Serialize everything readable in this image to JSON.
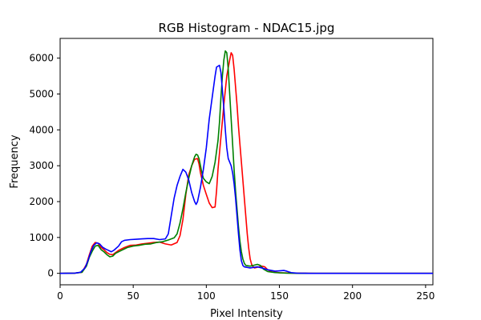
{
  "chart_data": {
    "type": "line",
    "title": "RGB Histogram - NDAC15.jpg",
    "xlabel": "Pixel Intensity",
    "ylabel": "Frequency",
    "xlim": [
      0,
      255
    ],
    "ylim": [
      -320,
      6550
    ],
    "xticks": [
      0,
      50,
      100,
      150,
      200,
      250
    ],
    "yticks": [
      0,
      1000,
      2000,
      3000,
      4000,
      5000,
      6000
    ],
    "grid": false,
    "legend": "none",
    "series": [
      {
        "color": "#ff0000",
        "points": [
          [
            0,
            0
          ],
          [
            10,
            5
          ],
          [
            15,
            30
          ],
          [
            18,
            250
          ],
          [
            20,
            520
          ],
          [
            22,
            760
          ],
          [
            24,
            860
          ],
          [
            26,
            840
          ],
          [
            28,
            720
          ],
          [
            30,
            660
          ],
          [
            32,
            580
          ],
          [
            34,
            530
          ],
          [
            36,
            520
          ],
          [
            38,
            580
          ],
          [
            40,
            640
          ],
          [
            44,
            720
          ],
          [
            48,
            780
          ],
          [
            52,
            790
          ],
          [
            56,
            820
          ],
          [
            60,
            840
          ],
          [
            64,
            860
          ],
          [
            68,
            870
          ],
          [
            72,
            820
          ],
          [
            76,
            790
          ],
          [
            80,
            860
          ],
          [
            82,
            1050
          ],
          [
            84,
            1500
          ],
          [
            86,
            2200
          ],
          [
            88,
            2750
          ],
          [
            90,
            3000
          ],
          [
            92,
            3180
          ],
          [
            94,
            3200
          ],
          [
            95,
            3050
          ],
          [
            96,
            2800
          ],
          [
            98,
            2450
          ],
          [
            100,
            2200
          ],
          [
            102,
            1960
          ],
          [
            104,
            1830
          ],
          [
            106,
            1850
          ],
          [
            107,
            2300
          ],
          [
            108,
            2900
          ],
          [
            110,
            3800
          ],
          [
            112,
            4700
          ],
          [
            114,
            5500
          ],
          [
            116,
            5950
          ],
          [
            117,
            6150
          ],
          [
            118,
            6080
          ],
          [
            119,
            5700
          ],
          [
            120,
            5200
          ],
          [
            121,
            4700
          ],
          [
            122,
            4100
          ],
          [
            123,
            3600
          ],
          [
            124,
            3100
          ],
          [
            125,
            2600
          ],
          [
            126,
            2100
          ],
          [
            127,
            1600
          ],
          [
            128,
            1100
          ],
          [
            129,
            700
          ],
          [
            130,
            400
          ],
          [
            131,
            250
          ],
          [
            132,
            180
          ],
          [
            133,
            150
          ],
          [
            136,
            180
          ],
          [
            138,
            200
          ],
          [
            140,
            180
          ],
          [
            142,
            100
          ],
          [
            145,
            40
          ],
          [
            150,
            15
          ],
          [
            160,
            5
          ],
          [
            175,
            0
          ],
          [
            255,
            0
          ]
        ]
      },
      {
        "color": "#008000",
        "points": [
          [
            0,
            0
          ],
          [
            10,
            5
          ],
          [
            15,
            30
          ],
          [
            18,
            200
          ],
          [
            20,
            450
          ],
          [
            22,
            620
          ],
          [
            24,
            760
          ],
          [
            26,
            780
          ],
          [
            28,
            660
          ],
          [
            30,
            600
          ],
          [
            32,
            520
          ],
          [
            34,
            460
          ],
          [
            36,
            480
          ],
          [
            38,
            560
          ],
          [
            42,
            640
          ],
          [
            46,
            720
          ],
          [
            50,
            760
          ],
          [
            54,
            780
          ],
          [
            58,
            810
          ],
          [
            62,
            820
          ],
          [
            66,
            860
          ],
          [
            70,
            880
          ],
          [
            74,
            930
          ],
          [
            78,
            990
          ],
          [
            80,
            1100
          ],
          [
            82,
            1400
          ],
          [
            84,
            1800
          ],
          [
            86,
            2250
          ],
          [
            88,
            2650
          ],
          [
            90,
            3000
          ],
          [
            92,
            3250
          ],
          [
            93,
            3320
          ],
          [
            94,
            3300
          ],
          [
            95,
            3200
          ],
          [
            96,
            3000
          ],
          [
            97,
            2800
          ],
          [
            98,
            2650
          ],
          [
            100,
            2550
          ],
          [
            102,
            2500
          ],
          [
            104,
            2700
          ],
          [
            106,
            3100
          ],
          [
            108,
            3700
          ],
          [
            109,
            4200
          ],
          [
            110,
            4900
          ],
          [
            111,
            5500
          ],
          [
            112,
            5950
          ],
          [
            113,
            6200
          ],
          [
            114,
            6150
          ],
          [
            115,
            5700
          ],
          [
            116,
            5000
          ],
          [
            117,
            4300
          ],
          [
            118,
            3600
          ],
          [
            119,
            2900
          ],
          [
            120,
            2300
          ],
          [
            121,
            1800
          ],
          [
            122,
            1300
          ],
          [
            123,
            900
          ],
          [
            124,
            600
          ],
          [
            125,
            400
          ],
          [
            126,
            280
          ],
          [
            127,
            220
          ],
          [
            130,
            200
          ],
          [
            133,
            230
          ],
          [
            135,
            250
          ],
          [
            137,
            220
          ],
          [
            139,
            120
          ],
          [
            142,
            50
          ],
          [
            147,
            20
          ],
          [
            155,
            5
          ],
          [
            165,
            0
          ],
          [
            255,
            0
          ]
        ]
      },
      {
        "color": "#0000ff",
        "points": [
          [
            0,
            0
          ],
          [
            10,
            5
          ],
          [
            14,
            30
          ],
          [
            17,
            150
          ],
          [
            19,
            350
          ],
          [
            21,
            600
          ],
          [
            23,
            780
          ],
          [
            25,
            850
          ],
          [
            27,
            820
          ],
          [
            29,
            730
          ],
          [
            31,
            680
          ],
          [
            33,
            640
          ],
          [
            35,
            600
          ],
          [
            37,
            650
          ],
          [
            40,
            760
          ],
          [
            42,
            880
          ],
          [
            44,
            920
          ],
          [
            48,
            940
          ],
          [
            52,
            950
          ],
          [
            56,
            960
          ],
          [
            60,
            970
          ],
          [
            64,
            970
          ],
          [
            68,
            940
          ],
          [
            72,
            960
          ],
          [
            74,
            1100
          ],
          [
            76,
            1600
          ],
          [
            78,
            2100
          ],
          [
            80,
            2450
          ],
          [
            82,
            2700
          ],
          [
            84,
            2900
          ],
          [
            86,
            2820
          ],
          [
            88,
            2600
          ],
          [
            90,
            2250
          ],
          [
            92,
            2000
          ],
          [
            93,
            1920
          ],
          [
            94,
            2000
          ],
          [
            96,
            2400
          ],
          [
            98,
            2900
          ],
          [
            100,
            3500
          ],
          [
            102,
            4300
          ],
          [
            104,
            4900
          ],
          [
            106,
            5500
          ],
          [
            107,
            5750
          ],
          [
            109,
            5800
          ],
          [
            110,
            5600
          ],
          [
            111,
            5100
          ],
          [
            112,
            4600
          ],
          [
            113,
            4000
          ],
          [
            114,
            3500
          ],
          [
            115,
            3200
          ],
          [
            117,
            3000
          ],
          [
            118,
            2800
          ],
          [
            119,
            2500
          ],
          [
            120,
            2100
          ],
          [
            121,
            1600
          ],
          [
            122,
            1100
          ],
          [
            123,
            650
          ],
          [
            124,
            350
          ],
          [
            125,
            220
          ],
          [
            126,
            180
          ],
          [
            130,
            150
          ],
          [
            133,
            170
          ],
          [
            135,
            180
          ],
          [
            138,
            150
          ],
          [
            142,
            100
          ],
          [
            147,
            60
          ],
          [
            150,
            70
          ],
          [
            153,
            80
          ],
          [
            155,
            60
          ],
          [
            158,
            20
          ],
          [
            162,
            5
          ],
          [
            170,
            0
          ],
          [
            255,
            0
          ]
        ]
      }
    ]
  }
}
